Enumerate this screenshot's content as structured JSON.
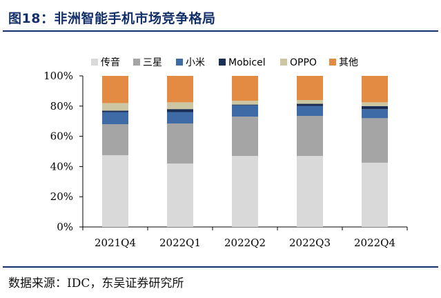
{
  "figure": {
    "title": "图18：非洲智能手机市场竞争格局",
    "source": "数据来源：IDC，东吴证券研究所"
  },
  "chart_data": {
    "type": "bar",
    "stacked": true,
    "categories": [
      "2021Q4",
      "2022Q1",
      "2022Q2",
      "2022Q3",
      "2022Q4"
    ],
    "ylim": [
      0,
      100
    ],
    "yticks": [
      0,
      20,
      40,
      60,
      80,
      100
    ],
    "ytick_labels": [
      "0%",
      "20%",
      "40%",
      "60%",
      "80%",
      "100%"
    ],
    "legend_position": "top",
    "series": [
      {
        "name": "传音",
        "color": "#d9d9d9",
        "values": [
          47.5,
          42.0,
          47.0,
          47.0,
          42.5
        ]
      },
      {
        "name": "三星",
        "color": "#a5a5a5",
        "values": [
          20.5,
          26.5,
          26.0,
          26.5,
          29.5
        ]
      },
      {
        "name": "小米",
        "color": "#3e6aa6",
        "values": [
          8.0,
          7.5,
          7.5,
          6.5,
          6.0
        ]
      },
      {
        "name": "Mobicel",
        "color": "#1a2e55",
        "values": [
          1.0,
          2.0,
          0.5,
          1.5,
          2.0
        ]
      },
      {
        "name": "OPPO",
        "color": "#cdc6a3",
        "values": [
          5.0,
          4.5,
          2.5,
          2.5,
          2.5
        ]
      },
      {
        "name": "其他",
        "color": "#e38b43",
        "values": [
          18.0,
          17.5,
          16.5,
          16.0,
          17.5
        ]
      }
    ]
  }
}
